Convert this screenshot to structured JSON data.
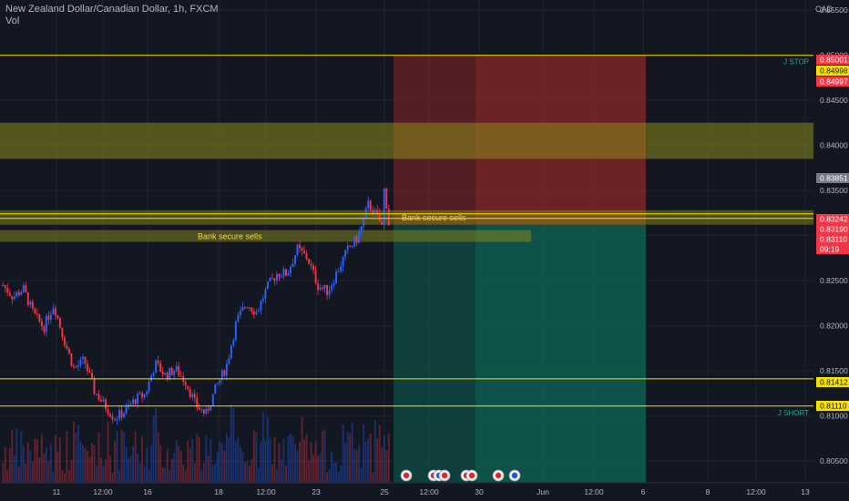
{
  "header": {
    "title": "New Zealand Dollar/Canadian Dollar, 1h, FXCM",
    "indicator": "Vol",
    "currency": "CAD"
  },
  "colors": {
    "background": "#131722",
    "up": "#2962ff",
    "down": "#f23645",
    "level_line": "#f5e100",
    "zone": "#8a8a1c",
    "stop_zone": "#8b2727",
    "target_zone": "#0c5a4e",
    "axis_text": "#b2b5be",
    "label_text": "#f5d742"
  },
  "chart_data": {
    "type": "candlestick",
    "symbol": "NZDCAD",
    "timeframe": "1h",
    "y_axis": {
      "range": [
        0.8026,
        0.8561
      ],
      "ticks": [
        "0.80500",
        "0.81000",
        "0.81500",
        "0.82000",
        "0.82500",
        "0.83000",
        "0.83500",
        "0.84000",
        "0.84500",
        "0.85000",
        "0.85500"
      ]
    },
    "x_axis": {
      "ticks": [
        "11",
        "12:00",
        "16",
        "18",
        "12:00",
        "23",
        "25",
        "12:00",
        "30",
        "Jun",
        "12:00",
        "6",
        "8",
        "12:00",
        "13"
      ]
    },
    "price_labels": [
      "0.85001",
      "0.84998",
      "0.84997",
      "0.83851",
      "0.83242",
      "0.83190",
      "0.83110",
      "09:19",
      "0.81412",
      "0.81110"
    ],
    "horizontal_lines": [
      {
        "price": 0.84997,
        "label": "J STOP"
      },
      {
        "price": 0.8324
      },
      {
        "price": 0.8319
      },
      {
        "price": 0.81412
      },
      {
        "price": 0.8111,
        "label": "J SHORT"
      }
    ],
    "zones": [
      {
        "from": 0.8385,
        "to": 0.8425,
        "label": ""
      },
      {
        "from": 0.8312,
        "to": 0.8328,
        "label": "Bank secure sells"
      },
      {
        "from": 0.8293,
        "to": 0.8306,
        "label": "Bank secure sells"
      }
    ],
    "position": {
      "type": "short",
      "entry": 0.8312,
      "stop": 0.84997,
      "target": 0.8026
    },
    "price_path": [
      0.8245,
      0.8232,
      0.8241,
      0.8213,
      0.8198,
      0.8224,
      0.8185,
      0.8152,
      0.8162,
      0.8128,
      0.8112,
      0.8098,
      0.8105,
      0.8118,
      0.8124,
      0.8158,
      0.8145,
      0.8152,
      0.8138,
      0.8112,
      0.8102,
      0.8132,
      0.8155,
      0.8205,
      0.8225,
      0.8215,
      0.8242,
      0.8258,
      0.8258,
      0.8285,
      0.8275,
      0.8245,
      0.8238,
      0.8262,
      0.8285,
      0.8298,
      0.8335,
      0.8318,
      0.8293
    ]
  }
}
